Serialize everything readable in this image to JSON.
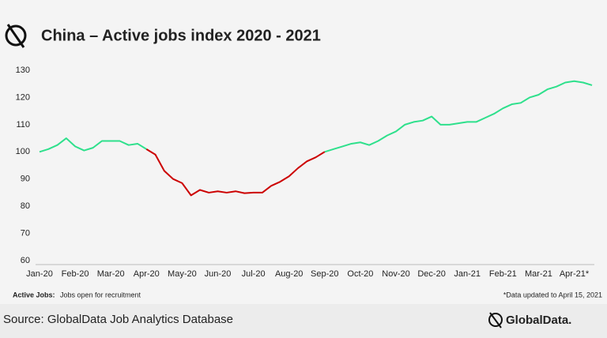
{
  "chart_data": {
    "type": "line",
    "title": "China – Active jobs index 2020 - 2021",
    "categories": [
      "Jan-20",
      null,
      null,
      null,
      "Feb-20",
      null,
      null,
      null,
      "Mar-20",
      null,
      null,
      null,
      "Apr-20",
      null,
      null,
      null,
      "May-20",
      null,
      null,
      null,
      "Jun-20",
      null,
      null,
      null,
      "Jul-20",
      null,
      null,
      null,
      "Aug-20",
      null,
      null,
      null,
      "Sep-20",
      null,
      null,
      null,
      "Oct-20",
      null,
      null,
      null,
      "Nov-20",
      null,
      null,
      null,
      "Dec-20",
      null,
      null,
      null,
      "Jan-21",
      null,
      null,
      null,
      "Feb-21",
      null,
      null,
      null,
      "Mar-21",
      null,
      null,
      null,
      "Apr-21*",
      null,
      null
    ],
    "series": [
      {
        "color": "#2ee08c",
        "values": [
          100,
          101,
          102.5,
          105,
          102,
          100.5,
          101.5,
          104,
          104,
          104,
          102.5,
          103,
          101,
          null,
          null,
          null,
          null,
          null,
          null,
          null,
          null,
          null,
          null,
          null,
          null,
          null,
          null,
          null,
          null,
          null,
          null,
          null,
          100,
          101,
          102,
          103,
          103.5,
          102.5,
          104,
          106,
          107.5,
          110,
          111,
          111.5,
          113,
          110,
          110,
          110.5,
          111,
          111,
          112.5,
          114,
          116,
          117.5,
          118,
          120,
          121,
          123,
          124,
          125.5,
          126,
          125.5,
          124.5
        ]
      },
      {
        "color": "#cc0000",
        "values": [
          null,
          null,
          null,
          null,
          null,
          null,
          null,
          null,
          null,
          null,
          null,
          null,
          101,
          99,
          93,
          90,
          88.5,
          84,
          86,
          85,
          85.5,
          85,
          85.5,
          84.8,
          85,
          85,
          87.5,
          89,
          91,
          94,
          96.5,
          98,
          100,
          null,
          null,
          null,
          null,
          null,
          null,
          null,
          null,
          null,
          null,
          null,
          null,
          null,
          null,
          null,
          null,
          null,
          null,
          null,
          null,
          null,
          null,
          null,
          null,
          null,
          null,
          null,
          null,
          null,
          null
        ]
      }
    ],
    "ylim": [
      60,
      130
    ],
    "yticks": [
      60,
      70,
      80,
      90,
      100,
      110,
      120,
      130
    ],
    "grid": false,
    "footnote_label": "Active Jobs:",
    "footnote_text": "Jobs open for recruitment",
    "data_note": "*Data updated to April 15, 2021",
    "source": "Source: GlobalData Job Analytics Database",
    "logo": "GlobalData."
  }
}
